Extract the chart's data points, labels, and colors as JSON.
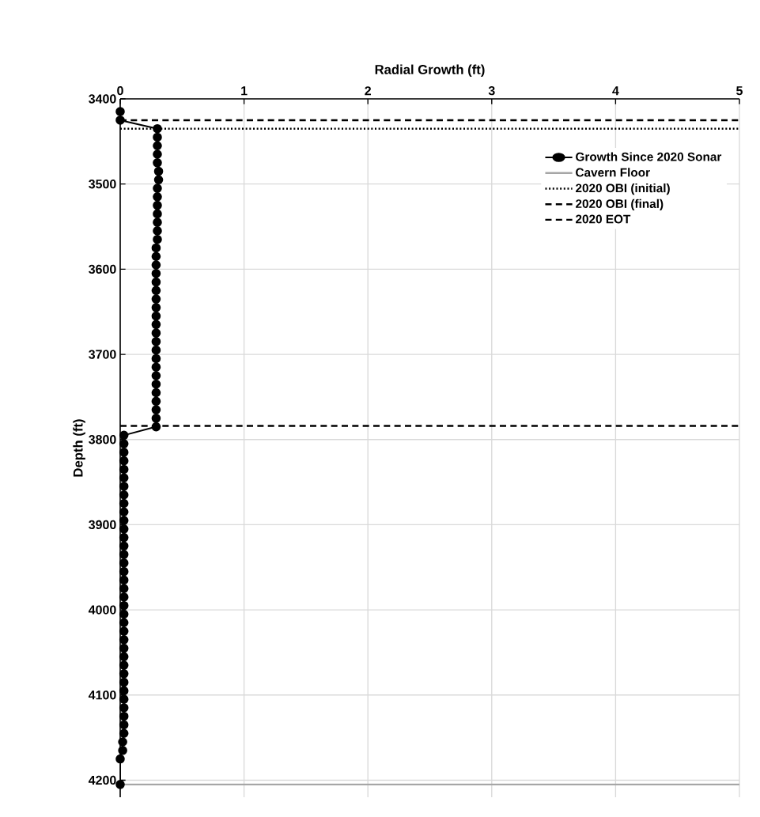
{
  "chart_data": {
    "type": "line",
    "xlabel": "Radial Growth (ft)",
    "ylabel": "Depth (ft)",
    "xlim": [
      0,
      5
    ],
    "xticks": [
      0,
      1,
      2,
      3,
      4,
      5
    ],
    "ylim": [
      4220,
      3400
    ],
    "yticks": [
      3400,
      3500,
      3600,
      3700,
      3800,
      3900,
      4000,
      4100,
      4200
    ],
    "grid": true,
    "legend": "top right",
    "marker": "circle",
    "line_style": "solid",
    "series": [
      {
        "name": "Growth Since 2020 Sonar",
        "color": "#000000",
        "x": [
          0,
          0,
          0.3,
          0.3,
          0.3,
          0.3,
          0.3,
          0.31,
          0.31,
          0.3,
          0.3,
          0.3,
          0.3,
          0.3,
          0.3,
          0.3,
          0.29,
          0.29,
          0.29,
          0.29,
          0.29,
          0.29,
          0.29,
          0.29,
          0.29,
          0.29,
          0.29,
          0.29,
          0.29,
          0.29,
          0.29,
          0.29,
          0.29,
          0.29,
          0.29,
          0.29,
          0.29,
          0.29,
          0.03,
          0.03,
          0.03,
          0.03,
          0.03,
          0.03,
          0.03,
          0.03,
          0.03,
          0.03,
          0.03,
          0.03,
          0.03,
          0.03,
          0.03,
          0.03,
          0.03,
          0.03,
          0.03,
          0.03,
          0.03,
          0.03,
          0.03,
          0.03,
          0.03,
          0.03,
          0.03,
          0.03,
          0.03,
          0.03,
          0.03,
          0.03,
          0.03,
          0.03,
          0.03,
          0.03,
          0.02,
          0.02,
          0,
          0
        ],
        "values": [
          3415,
          3425,
          3435,
          3445,
          3455,
          3465,
          3475,
          3485,
          3495,
          3505,
          3515,
          3525,
          3535,
          3545,
          3555,
          3565,
          3575,
          3585,
          3595,
          3605,
          3615,
          3625,
          3635,
          3645,
          3655,
          3665,
          3675,
          3685,
          3695,
          3705,
          3715,
          3725,
          3735,
          3745,
          3755,
          3765,
          3775,
          3785,
          3795,
          3805,
          3815,
          3825,
          3835,
          3845,
          3855,
          3865,
          3875,
          3885,
          3895,
          3905,
          3915,
          3925,
          3935,
          3945,
          3955,
          3965,
          3975,
          3985,
          3995,
          4005,
          4015,
          4025,
          4035,
          4045,
          4055,
          4065,
          4075,
          4085,
          4095,
          4105,
          4115,
          4125,
          4135,
          4145,
          4155,
          4165,
          4175,
          4205
        ]
      }
    ],
    "ref_lines": [
      {
        "axis": "y",
        "value": 4205,
        "label": "Cavern Floor",
        "color": "#a6a6a6",
        "line_style": "solid"
      },
      {
        "axis": "y",
        "value": 3435,
        "label": "2020 OBI (initial)",
        "color": "#000000",
        "line_style": "dotted"
      },
      {
        "axis": "y",
        "value": 3425,
        "label": "2020 OBI (final)",
        "color": "#000000",
        "line_style": "dashed"
      },
      {
        "axis": "y",
        "value": 3784,
        "label": "2020 EOT",
        "color": "#000000",
        "line_style": "dashed"
      }
    ]
  }
}
